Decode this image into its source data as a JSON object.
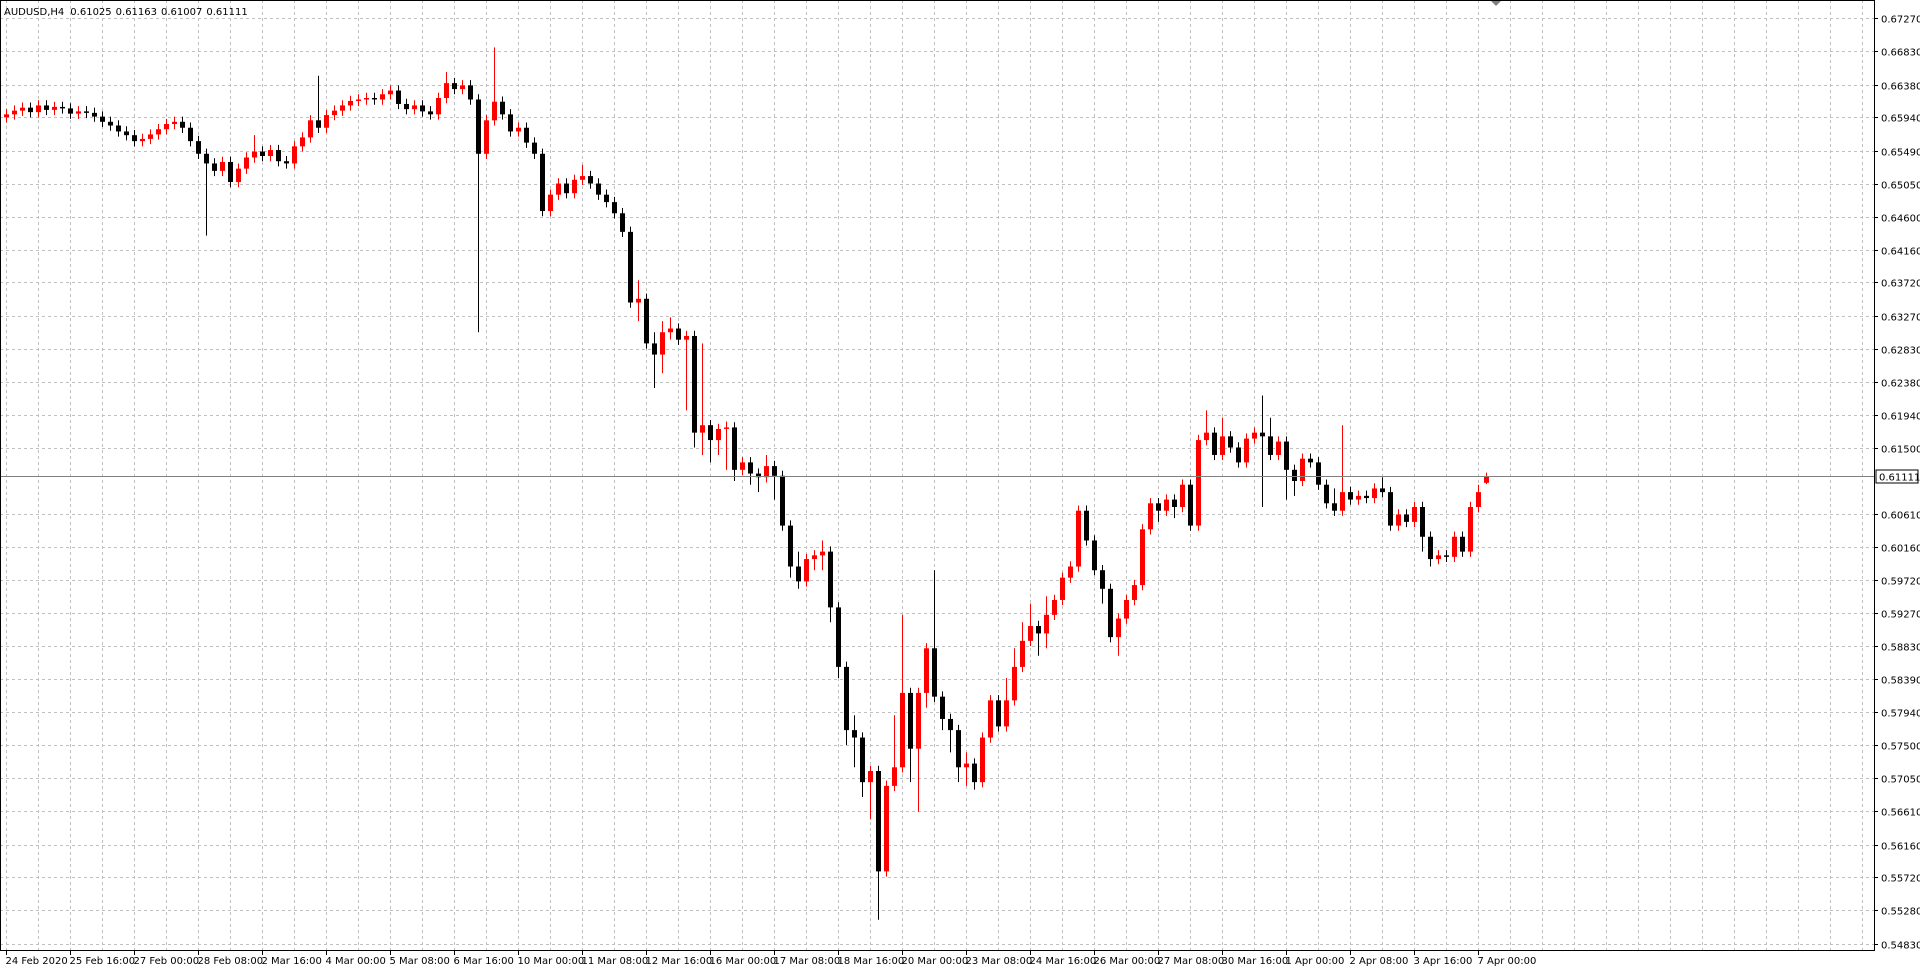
{
  "chart_data": {
    "type": "candlestick",
    "title": "AUDUSD,H4",
    "categories": [
      "24 Feb 2020",
      null,
      null,
      null,
      null,
      null,
      null,
      null,
      "25 Feb 16:00",
      null,
      null,
      null,
      null,
      null,
      null,
      null,
      "27 Feb 00:00",
      null,
      null,
      null,
      null,
      null,
      null,
      null,
      "28 Feb 08:00",
      null,
      null,
      null,
      null,
      null,
      null,
      null,
      "2 Mar 16:00",
      null,
      null,
      null,
      null,
      null,
      null,
      null,
      "4 Mar 00:00",
      null,
      null,
      null,
      null,
      null,
      null,
      null,
      "5 Mar 08:00",
      null,
      null,
      null,
      null,
      null,
      null,
      null,
      "6 Mar 16:00",
      null,
      null,
      null,
      null,
      null,
      null,
      null,
      "10 Mar 00:00",
      null,
      null,
      null,
      null,
      null,
      null,
      null,
      "11 Mar 08:00",
      null,
      null,
      null,
      null,
      null,
      null,
      null,
      "12 Mar 16:00",
      null,
      null,
      null,
      null,
      null,
      null,
      null,
      "16 Mar 00:00",
      null,
      null,
      null,
      null,
      null,
      null,
      null,
      "17 Mar 08:00",
      null,
      null,
      null,
      null,
      null,
      null,
      null,
      "18 Mar 16:00",
      null,
      null,
      null,
      null,
      null,
      null,
      null,
      "20 Mar 00:00",
      null,
      null,
      null,
      null,
      null,
      null,
      null,
      "23 Mar 08:00",
      null,
      null,
      null,
      null,
      null,
      null,
      null,
      "24 Mar 16:00",
      null,
      null,
      null,
      null,
      null,
      null,
      null,
      "26 Mar 00:00",
      null,
      null,
      null,
      null,
      null,
      null,
      null,
      "27 Mar 08:00",
      null,
      null,
      null,
      null,
      null,
      null,
      null,
      "30 Mar 16:00",
      null,
      null,
      null,
      null,
      null,
      null,
      null,
      "1 Apr 00:00",
      null,
      null,
      null,
      null,
      null,
      null,
      null,
      "2 Apr 08:00",
      null,
      null,
      null,
      null,
      null,
      null,
      null,
      "3 Apr 16:00",
      null,
      null,
      null,
      null,
      null,
      null,
      null,
      "7 Apr 00:00",
      null
    ],
    "open": [
      0.6594,
      0.6598,
      0.6603,
      0.6607,
      0.6601,
      0.661,
      0.6604,
      0.6608,
      0.6606,
      0.6599,
      0.6602,
      0.66,
      0.6595,
      0.6588,
      0.6583,
      0.6575,
      0.657,
      0.6562,
      0.6565,
      0.6571,
      0.6578,
      0.6585,
      0.6588,
      0.658,
      0.6562,
      0.6545,
      0.6532,
      0.6522,
      0.6534,
      0.6507,
      0.6525,
      0.654,
      0.6548,
      0.6542,
      0.655,
      0.6535,
      0.6532,
      0.6555,
      0.6567,
      0.659,
      0.658,
      0.6597,
      0.6603,
      0.661,
      0.6616,
      0.6618,
      0.662,
      0.6618,
      0.6625,
      0.663,
      0.6612,
      0.6605,
      0.661,
      0.6602,
      0.6598,
      0.662,
      0.664,
      0.6632,
      0.6637,
      0.6618,
      0.6545,
      0.659,
      0.6615,
      0.6598,
      0.6575,
      0.658,
      0.656,
      0.6545,
      0.6468,
      0.649,
      0.6505,
      0.6492,
      0.651,
      0.6515,
      0.6505,
      0.649,
      0.648,
      0.6465,
      0.644,
      0.6345,
      0.635,
      0.629,
      0.6275,
      0.6305,
      0.631,
      0.6295,
      0.63,
      0.617,
      0.618,
      0.616,
      0.6175,
      0.6177,
      0.612,
      0.613,
      0.6115,
      0.611,
      0.6125,
      0.6112,
      0.6045,
      0.599,
      0.597,
      0.6,
      0.6005,
      0.601,
      0.5935,
      0.5855,
      0.577,
      0.576,
      0.57,
      0.5715,
      0.558,
      0.5695,
      0.572,
      0.582,
      0.5745,
      0.582,
      0.588,
      0.5815,
      0.5785,
      0.577,
      0.572,
      0.5725,
      0.57,
      0.576,
      0.581,
      0.5775,
      0.581,
      0.5855,
      0.589,
      0.591,
      0.59,
      0.5925,
      0.5945,
      0.5975,
      0.599,
      0.6065,
      0.6025,
      0.5985,
      0.596,
      0.5895,
      0.592,
      0.5945,
      0.5965,
      0.604,
      0.6075,
      0.6065,
      0.608,
      0.607,
      0.61,
      0.6045,
      0.616,
      0.617,
      0.614,
      0.6165,
      0.615,
      0.613,
      0.6162,
      0.617,
      0.6165,
      0.614,
      0.6158,
      0.612,
      0.6105,
      0.6135,
      0.613,
      0.61,
      0.6075,
      0.6065,
      0.609,
      0.608,
      0.6085,
      0.6082,
      0.6095,
      0.609,
      0.6045,
      0.606,
      0.605,
      0.607,
      0.603,
      0.6,
      0.6005,
      0.6003,
      0.603,
      0.601,
      0.607,
      0.61025
    ],
    "high": [
      0.6605,
      0.661,
      0.6614,
      0.6614,
      0.6617,
      0.6617,
      0.6615,
      0.6615,
      0.6613,
      0.6609,
      0.6609,
      0.6607,
      0.6602,
      0.6595,
      0.659,
      0.6582,
      0.6577,
      0.6572,
      0.6578,
      0.6585,
      0.6592,
      0.6595,
      0.6595,
      0.6587,
      0.6569,
      0.6552,
      0.6539,
      0.6541,
      0.6541,
      0.6532,
      0.6547,
      0.657,
      0.6555,
      0.6557,
      0.6557,
      0.6542,
      0.6562,
      0.6574,
      0.6597,
      0.665,
      0.6604,
      0.661,
      0.6617,
      0.6623,
      0.6625,
      0.6627,
      0.6627,
      0.6632,
      0.6637,
      0.6637,
      0.6619,
      0.6617,
      0.6617,
      0.6609,
      0.6627,
      0.6655,
      0.6647,
      0.6644,
      0.6644,
      0.6625,
      0.6597,
      0.6688,
      0.6622,
      0.6605,
      0.6587,
      0.6587,
      0.6567,
      0.6552,
      0.6497,
      0.6512,
      0.6512,
      0.6517,
      0.653,
      0.6522,
      0.6512,
      0.6497,
      0.6487,
      0.6472,
      0.6447,
      0.6375,
      0.6357,
      0.6305,
      0.632,
      0.6325,
      0.6317,
      0.6307,
      0.6307,
      0.629,
      0.6187,
      0.6182,
      0.6185,
      0.6184,
      0.6137,
      0.6137,
      0.6122,
      0.614,
      0.6132,
      0.6119,
      0.6052,
      0.601,
      0.6007,
      0.6012,
      0.6025,
      0.6017,
      0.5942,
      0.5862,
      0.579,
      0.5767,
      0.5722,
      0.5722,
      0.5702,
      0.579,
      0.5925,
      0.5827,
      0.5827,
      0.5887,
      0.5985,
      0.5822,
      0.5792,
      0.5777,
      0.574,
      0.5732,
      0.5767,
      0.5817,
      0.5817,
      0.584,
      0.588,
      0.5915,
      0.594,
      0.5917,
      0.595,
      0.5952,
      0.5982,
      0.5997,
      0.6072,
      0.6072,
      0.6032,
      0.5992,
      0.5967,
      0.5927,
      0.5952,
      0.5972,
      0.6047,
      0.6082,
      0.6082,
      0.6087,
      0.6087,
      0.6107,
      0.6107,
      0.6167,
      0.62,
      0.6177,
      0.619,
      0.6172,
      0.6157,
      0.6169,
      0.6177,
      0.622,
      0.619,
      0.6165,
      0.6165,
      0.6127,
      0.6142,
      0.6142,
      0.6137,
      0.6107,
      0.6095,
      0.618,
      0.6097,
      0.6092,
      0.6092,
      0.6102,
      0.611,
      0.6097,
      0.6067,
      0.6067,
      0.6077,
      0.6077,
      0.6037,
      0.6012,
      0.6012,
      0.6037,
      0.6037,
      0.6077,
      0.61,
      0.61163
    ],
    "low": [
      0.6587,
      0.6591,
      0.6596,
      0.6594,
      0.6594,
      0.6597,
      0.6597,
      0.6599,
      0.6592,
      0.6592,
      0.6593,
      0.6588,
      0.6581,
      0.6576,
      0.6568,
      0.6563,
      0.6555,
      0.6555,
      0.6558,
      0.6564,
      0.6571,
      0.6578,
      0.6573,
      0.6555,
      0.6538,
      0.6435,
      0.6515,
      0.6515,
      0.65,
      0.65,
      0.6518,
      0.6533,
      0.6535,
      0.6535,
      0.6528,
      0.6525,
      0.6525,
      0.6548,
      0.656,
      0.6573,
      0.6573,
      0.659,
      0.6596,
      0.6603,
      0.6609,
      0.6611,
      0.6611,
      0.6611,
      0.6618,
      0.6605,
      0.6598,
      0.6598,
      0.6595,
      0.6591,
      0.6591,
      0.6613,
      0.6625,
      0.6625,
      0.6611,
      0.6305,
      0.6538,
      0.6583,
      0.6591,
      0.6568,
      0.6568,
      0.6553,
      0.6538,
      0.6461,
      0.6461,
      0.6483,
      0.6485,
      0.6485,
      0.6503,
      0.6498,
      0.6483,
      0.6473,
      0.6458,
      0.6433,
      0.6338,
      0.632,
      0.6283,
      0.623,
      0.625,
      0.6295,
      0.6288,
      0.62,
      0.615,
      0.614,
      0.613,
      0.614,
      0.612,
      0.6105,
      0.6113,
      0.61,
      0.609,
      0.6103,
      0.608,
      0.6038,
      0.5975,
      0.596,
      0.5963,
      0.5985,
      0.5985,
      0.5915,
      0.584,
      0.575,
      0.572,
      0.568,
      0.565,
      0.5515,
      0.5573,
      0.5688,
      0.5713,
      0.57,
      0.566,
      0.58,
      0.5808,
      0.577,
      0.574,
      0.57,
      0.5695,
      0.569,
      0.5693,
      0.5753,
      0.5768,
      0.5768,
      0.5803,
      0.5848,
      0.5883,
      0.587,
      0.588,
      0.5918,
      0.5938,
      0.5968,
      0.5983,
      0.6018,
      0.5978,
      0.594,
      0.5888,
      0.587,
      0.5913,
      0.5938,
      0.5958,
      0.6033,
      0.605,
      0.6058,
      0.6055,
      0.6063,
      0.6038,
      0.6038,
      0.6153,
      0.6133,
      0.6133,
      0.6143,
      0.6123,
      0.6123,
      0.6155,
      0.607,
      0.6133,
      0.6133,
      0.608,
      0.6085,
      0.6098,
      0.6123,
      0.6093,
      0.6068,
      0.6058,
      0.6058,
      0.6073,
      0.6073,
      0.6075,
      0.6075,
      0.6083,
      0.6038,
      0.6038,
      0.6043,
      0.6043,
      0.601,
      0.599,
      0.5993,
      0.5996,
      0.5996,
      0.6003,
      0.6003,
      0.6063,
      0.61007
    ],
    "close": [
      0.6598,
      0.6603,
      0.6607,
      0.6601,
      0.661,
      0.6604,
      0.6608,
      0.6606,
      0.6599,
      0.6602,
      0.66,
      0.6595,
      0.6588,
      0.6583,
      0.6575,
      0.657,
      0.6562,
      0.6565,
      0.6571,
      0.6578,
      0.6585,
      0.6588,
      0.658,
      0.6562,
      0.6545,
      0.6532,
      0.6522,
      0.6534,
      0.6507,
      0.6525,
      0.654,
      0.6548,
      0.6542,
      0.655,
      0.6535,
      0.6532,
      0.6555,
      0.6567,
      0.659,
      0.658,
      0.6597,
      0.6603,
      0.661,
      0.6616,
      0.6618,
      0.662,
      0.6618,
      0.6625,
      0.663,
      0.6612,
      0.6605,
      0.661,
      0.6602,
      0.6598,
      0.662,
      0.664,
      0.6632,
      0.6637,
      0.6618,
      0.6545,
      0.659,
      0.6615,
      0.6598,
      0.6575,
      0.658,
      0.656,
      0.6545,
      0.6468,
      0.649,
      0.6505,
      0.6492,
      0.651,
      0.6515,
      0.6505,
      0.649,
      0.648,
      0.6465,
      0.644,
      0.6345,
      0.635,
      0.629,
      0.6275,
      0.6305,
      0.631,
      0.6295,
      0.63,
      0.617,
      0.618,
      0.616,
      0.6175,
      0.6177,
      0.612,
      0.613,
      0.6115,
      0.611,
      0.6125,
      0.6112,
      0.6045,
      0.599,
      0.597,
      0.6,
      0.6005,
      0.601,
      0.5935,
      0.5855,
      0.577,
      0.576,
      0.57,
      0.5715,
      0.558,
      0.5695,
      0.572,
      0.582,
      0.5745,
      0.582,
      0.588,
      0.5815,
      0.5785,
      0.577,
      0.572,
      0.5725,
      0.57,
      0.576,
      0.581,
      0.5775,
      0.581,
      0.5855,
      0.589,
      0.591,
      0.59,
      0.5925,
      0.5945,
      0.5975,
      0.599,
      0.6065,
      0.6025,
      0.5985,
      0.596,
      0.5895,
      0.592,
      0.5945,
      0.5965,
      0.604,
      0.6075,
      0.6065,
      0.608,
      0.607,
      0.61,
      0.6045,
      0.616,
      0.617,
      0.614,
      0.6165,
      0.615,
      0.613,
      0.6162,
      0.617,
      0.6165,
      0.614,
      0.6158,
      0.612,
      0.6105,
      0.6135,
      0.613,
      0.61,
      0.6075,
      0.6065,
      0.609,
      0.608,
      0.6085,
      0.6082,
      0.6095,
      0.609,
      0.6045,
      0.606,
      0.605,
      0.607,
      0.603,
      0.6,
      0.6005,
      0.6003,
      0.603,
      0.601,
      0.607,
      0.609,
      0.61111
    ],
    "ylim": [
      0.54743,
      0.67464
    ],
    "yticks": [
      {
        "value": 0.6727,
        "label": "0.67270"
      },
      {
        "value": 0.6683,
        "label": "0.66830"
      },
      {
        "value": 0.6638,
        "label": "0.66380"
      },
      {
        "value": 0.6594,
        "label": "0.65940"
      },
      {
        "value": 0.6549,
        "label": "0.65490"
      },
      {
        "value": 0.6505,
        "label": "0.65050"
      },
      {
        "value": 0.646,
        "label": "0.64600"
      },
      {
        "value": 0.6416,
        "label": "0.64160"
      },
      {
        "value": 0.6372,
        "label": "0.63720"
      },
      {
        "value": 0.6327,
        "label": "0.63270"
      },
      {
        "value": 0.6283,
        "label": "0.62830"
      },
      {
        "value": 0.6238,
        "label": "0.62380"
      },
      {
        "value": 0.6194,
        "label": "0.61940"
      },
      {
        "value": 0.615,
        "label": "0.61500"
      },
      {
        "value": 0.6061,
        "label": "0.60610"
      },
      {
        "value": 0.6016,
        "label": "0.60160"
      },
      {
        "value": 0.5972,
        "label": "0.59720"
      },
      {
        "value": 0.5927,
        "label": "0.59270"
      },
      {
        "value": 0.5883,
        "label": "0.58830"
      },
      {
        "value": 0.5839,
        "label": "0.58390"
      },
      {
        "value": 0.5794,
        "label": "0.57940"
      },
      {
        "value": 0.575,
        "label": "0.57500"
      },
      {
        "value": 0.5705,
        "label": "0.57050"
      },
      {
        "value": 0.5661,
        "label": "0.56610"
      },
      {
        "value": 0.5616,
        "label": "0.56160"
      },
      {
        "value": 0.5572,
        "label": "0.55720"
      },
      {
        "value": 0.5528,
        "label": "0.55280"
      },
      {
        "value": 0.5483,
        "label": "0.54830"
      }
    ],
    "grid": true,
    "bull_color": "#ff0000",
    "bear_color": "#000000"
  }
}
